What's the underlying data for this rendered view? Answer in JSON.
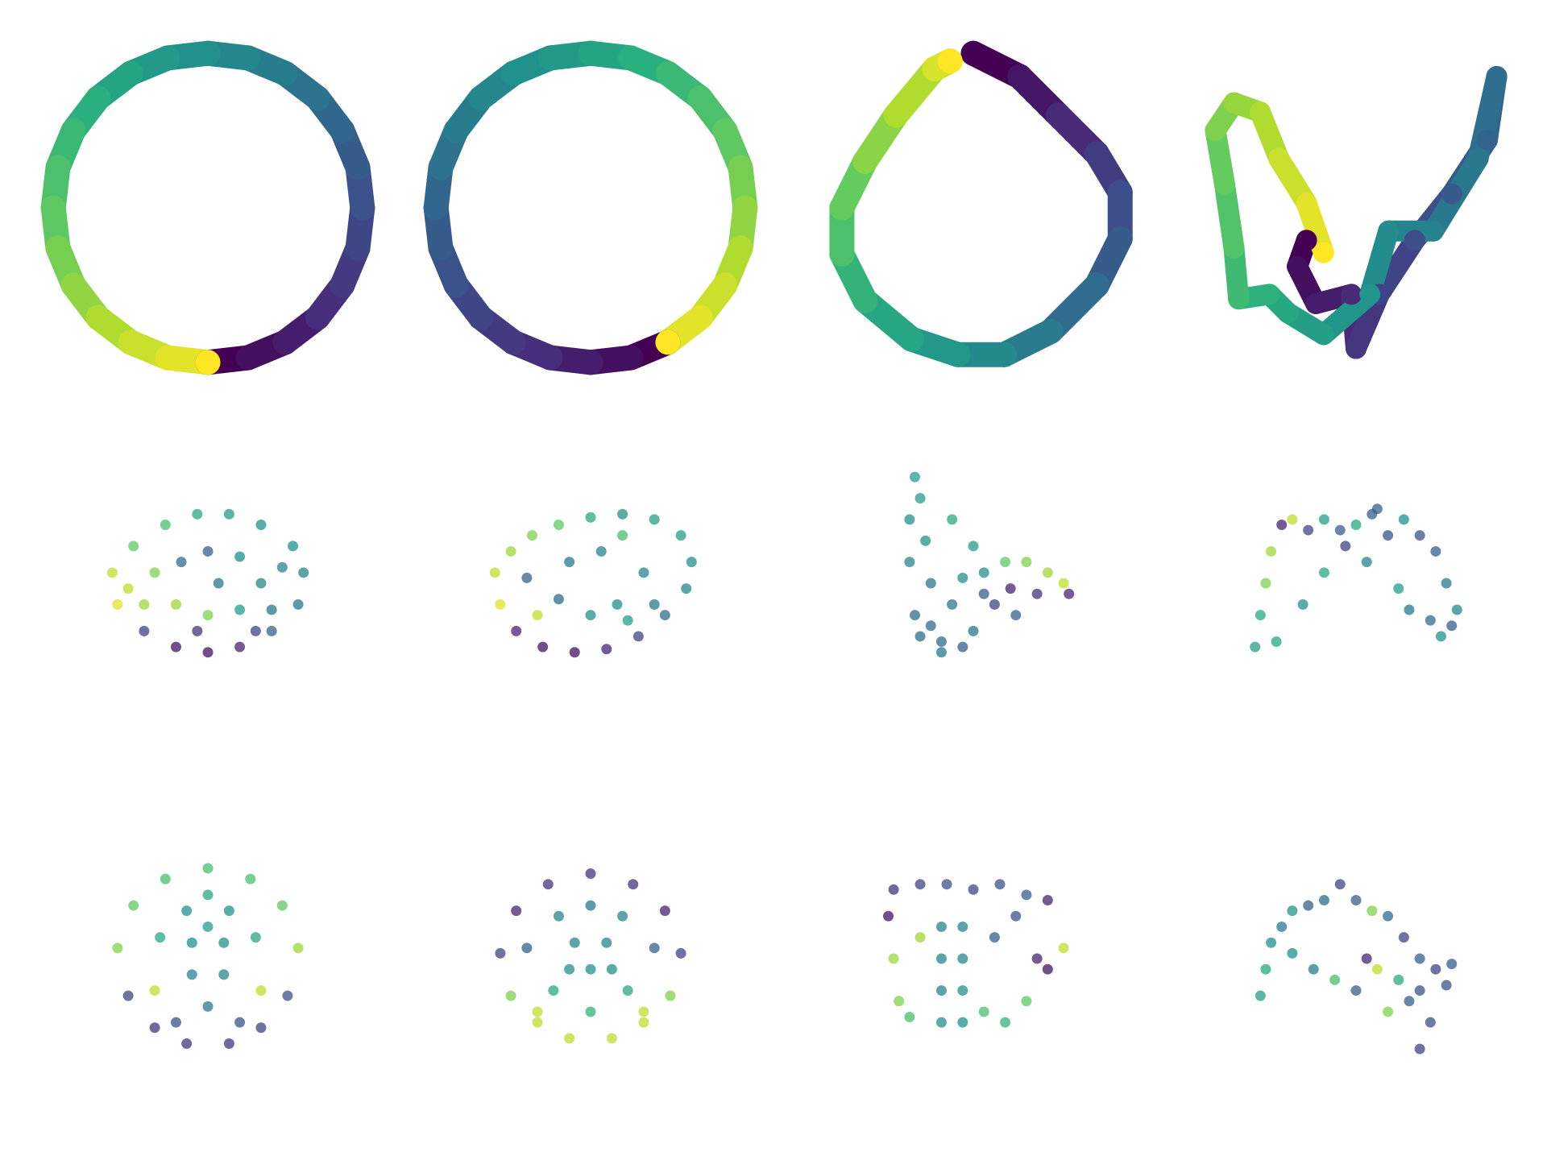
{
  "chart_data": [
    {
      "type": "line",
      "colormap": "viridis",
      "xlim": [
        -1.1,
        1.1
      ],
      "ylim": [
        -1.1,
        1.1
      ],
      "x": [
        0,
        0.26,
        0.5,
        0.71,
        0.87,
        0.97,
        1,
        0.97,
        0.87,
        0.71,
        0.5,
        0.26,
        0,
        -0.26,
        -0.5,
        -0.71,
        -0.87,
        -0.97,
        -1,
        -0.97,
        -0.87,
        -0.71,
        -0.5,
        -0.26,
        0
      ],
      "y": [
        -1,
        -0.97,
        -0.87,
        -0.71,
        -0.5,
        -0.26,
        0,
        0.26,
        0.5,
        0.71,
        0.87,
        0.97,
        1,
        0.97,
        0.87,
        0.71,
        0.5,
        0.26,
        0,
        -0.26,
        -0.5,
        -0.71,
        -0.87,
        -0.97,
        -1
      ],
      "c": [
        0,
        0.04,
        0.08,
        0.13,
        0.17,
        0.21,
        0.25,
        0.29,
        0.33,
        0.38,
        0.42,
        0.46,
        0.5,
        0.54,
        0.58,
        0.63,
        0.67,
        0.71,
        0.75,
        0.79,
        0.83,
        0.88,
        0.92,
        0.96,
        1
      ]
    },
    {
      "type": "line",
      "colormap": "viridis",
      "xlim": [
        -1.1,
        1.1
      ],
      "ylim": [
        -1.1,
        1.1
      ],
      "x": [
        0.5,
        0.26,
        0,
        -0.26,
        -0.5,
        -0.71,
        -0.87,
        -0.97,
        -1,
        -0.97,
        -0.87,
        -0.71,
        -0.5,
        -0.26,
        0,
        0.26,
        0.5,
        0.71,
        0.87,
        0.97,
        1,
        0.97,
        0.87,
        0.71,
        0.5
      ],
      "y": [
        -0.87,
        -0.97,
        -1,
        -0.97,
        -0.87,
        -0.71,
        -0.5,
        -0.26,
        0,
        0.26,
        0.5,
        0.71,
        0.87,
        0.97,
        1,
        0.97,
        0.87,
        0.71,
        0.5,
        0.26,
        0,
        -0.26,
        -0.5,
        -0.71,
        -0.87
      ],
      "c": [
        0,
        0.04,
        0.08,
        0.13,
        0.17,
        0.21,
        0.25,
        0.29,
        0.33,
        0.38,
        0.42,
        0.46,
        0.5,
        0.54,
        0.58,
        0.63,
        0.67,
        0.71,
        0.75,
        0.79,
        0.83,
        0.88,
        0.92,
        0.96,
        1
      ]
    },
    {
      "type": "line",
      "colormap": "viridis",
      "xlim": [
        -1.1,
        1.1
      ],
      "ylim": [
        -1.1,
        1.1
      ],
      "x": [
        0,
        0.3,
        0.55,
        0.8,
        0.95,
        0.95,
        0.8,
        0.5,
        0.2,
        -0.1,
        -0.4,
        -0.7,
        -0.85,
        -0.85,
        -0.7,
        -0.5,
        -0.25,
        -0.15
      ],
      "y": [
        1,
        0.85,
        0.6,
        0.35,
        0.1,
        -0.2,
        -0.5,
        -0.8,
        -0.95,
        -0.95,
        -0.85,
        -0.6,
        -0.3,
        0,
        0.3,
        0.6,
        0.9,
        0.95
      ],
      "c": [
        0,
        0.06,
        0.12,
        0.18,
        0.24,
        0.29,
        0.35,
        0.41,
        0.47,
        0.53,
        0.59,
        0.65,
        0.71,
        0.76,
        0.82,
        0.88,
        0.94,
        1
      ]
    },
    {
      "type": "line",
      "colormap": "viridis",
      "xlim": [
        -1.1,
        1.1
      ],
      "ylim": [
        -1.1,
        1.1
      ],
      "x": [
        -0.32,
        -0.38,
        -0.26,
        -0.03,
        0,
        0.15,
        0.38,
        0.62,
        0.85,
        0.91,
        0.79,
        0.5,
        0.21,
        0.09,
        -0.21,
        -0.44,
        -0.56,
        -0.76,
        -0.79,
        -0.85,
        -0.91,
        -0.79,
        -0.62,
        -0.5,
        -0.32,
        -0.21
      ],
      "y": [
        -0.21,
        -0.38,
        -0.62,
        -0.56,
        -0.91,
        -0.56,
        -0.21,
        0.09,
        0.44,
        0.85,
        0.32,
        -0.15,
        -0.15,
        -0.56,
        -0.82,
        -0.68,
        -0.56,
        -0.59,
        -0.26,
        0.15,
        0.5,
        0.68,
        0.62,
        0.32,
        0.03,
        -0.29
      ],
      "c": [
        0,
        0.04,
        0.08,
        0.12,
        0.16,
        0.2,
        0.24,
        0.28,
        0.32,
        0.36,
        0.4,
        0.44,
        0.48,
        0.52,
        0.56,
        0.6,
        0.64,
        0.68,
        0.72,
        0.76,
        0.8,
        0.84,
        0.88,
        0.92,
        0.96,
        1
      ]
    },
    {
      "type": "scatter",
      "colormap": "viridis",
      "xlim": [
        -1.6,
        1.6
      ],
      "ylim": [
        -1.6,
        1.6
      ],
      "x": [
        -0.9,
        -0.85,
        -0.6,
        -0.3,
        0,
        0.3,
        0.6,
        0.85,
        0.9,
        0.8,
        0.5,
        0.2,
        -0.1,
        -0.4,
        -0.7,
        -0.5,
        -0.3,
        0,
        0.3,
        0.5,
        0.3,
        0,
        -0.25,
        -0.6,
        0.6,
        -0.75,
        0.1,
        -0.1,
        0.45,
        0.7
      ],
      "y": [
        0.1,
        -0.2,
        -0.45,
        -0.6,
        -0.65,
        -0.6,
        -0.45,
        -0.2,
        0.1,
        0.35,
        0.55,
        0.65,
        0.65,
        0.55,
        0.35,
        0.1,
        -0.2,
        -0.3,
        -0.25,
        0,
        0.25,
        0.3,
        0.2,
        -0.2,
        -0.25,
        -0.05,
        0,
        -0.45,
        -0.45,
        0.15
      ],
      "c": [
        0.9,
        0.95,
        0.2,
        0.05,
        0.05,
        0.1,
        0.3,
        0.4,
        0.45,
        0.5,
        0.5,
        0.55,
        0.6,
        0.7,
        0.75,
        0.8,
        0.85,
        0.8,
        0.55,
        0.45,
        0.5,
        0.3,
        0.35,
        0.85,
        0.4,
        0.9,
        0.4,
        0.15,
        0.2,
        0.45
      ]
    },
    {
      "type": "scatter",
      "colormap": "viridis",
      "xlim": [
        -1.6,
        1.6
      ],
      "ylim": [
        -1.6,
        1.6
      ],
      "x": [
        -0.9,
        -0.85,
        -0.7,
        -0.45,
        -0.15,
        0.15,
        0.45,
        0.7,
        0.9,
        0.95,
        0.85,
        0.6,
        0.3,
        0,
        -0.3,
        -0.55,
        -0.75,
        -0.6,
        -0.3,
        0,
        0.25,
        0.35,
        0.3,
        0.5,
        -0.5,
        -0.2,
        0.1,
        0.6
      ],
      "y": [
        0.1,
        -0.2,
        -0.45,
        -0.6,
        -0.65,
        -0.62,
        -0.5,
        -0.3,
        -0.05,
        0.2,
        0.45,
        0.6,
        0.65,
        0.62,
        0.55,
        0.45,
        0.3,
        0.05,
        -0.15,
        -0.3,
        -0.2,
        -0.35,
        0.45,
        0.1,
        -0.3,
        0.2,
        0.3,
        -0.2
      ],
      "c": [
        0.9,
        0.95,
        0.1,
        0.05,
        0.05,
        0.1,
        0.2,
        0.35,
        0.45,
        0.5,
        0.55,
        0.55,
        0.5,
        0.6,
        0.75,
        0.8,
        0.85,
        0.3,
        0.35,
        0.5,
        0.5,
        0.55,
        0.7,
        0.45,
        0.9,
        0.4,
        0.45,
        0.4
      ]
    },
    {
      "type": "scatter",
      "colormap": "viridis",
      "xlim": [
        -1.6,
        1.6
      ],
      "ylim": [
        -1.6,
        1.6
      ],
      "x": [
        -0.55,
        -0.5,
        -0.6,
        -0.45,
        -0.6,
        -0.4,
        -0.55,
        -0.3,
        -0.1,
        0,
        -0.2,
        0.1,
        0.3,
        0.5,
        0.7,
        0.85,
        0.9,
        0.6,
        0.35,
        0.2,
        -0.4,
        -0.2,
        0,
        -0.1,
        0.1,
        -0.5,
        -0.3,
        0.4
      ],
      "y": [
        1,
        0.8,
        0.6,
        0.4,
        0.2,
        0,
        -0.3,
        -0.55,
        -0.6,
        -0.45,
        -0.2,
        0.1,
        0.2,
        0.2,
        0.1,
        0,
        -0.1,
        -0.1,
        -0.05,
        -0.2,
        -0.4,
        0.6,
        0.35,
        0.05,
        -0.1,
        -0.5,
        -0.65,
        -0.3
      ],
      "c": [
        0.55,
        0.55,
        0.5,
        0.5,
        0.45,
        0.4,
        0.35,
        0.35,
        0.3,
        0.4,
        0.4,
        0.5,
        0.75,
        0.8,
        0.85,
        0.9,
        0.1,
        0.15,
        0.1,
        0.2,
        0.35,
        0.6,
        0.55,
        0.5,
        0.3,
        0.35,
        0.4,
        0.3
      ]
    },
    {
      "type": "scatter",
      "colormap": "viridis",
      "xlim": [
        -1.6,
        1.6
      ],
      "ylim": [
        -1.6,
        1.6
      ],
      "x": [
        -0.95,
        -0.9,
        -0.85,
        -0.8,
        -0.7,
        -0.6,
        -0.45,
        -0.3,
        -0.15,
        0,
        0.15,
        0.3,
        0.45,
        0.6,
        0.75,
        0.85,
        0.95,
        0.9,
        0.7,
        0.5,
        -0.5,
        -0.3,
        0.1,
        0.4,
        0.8,
        -0.75,
        0.2,
        -0.1
      ],
      "y": [
        -0.6,
        -0.3,
        0,
        0.3,
        0.55,
        0.6,
        0.5,
        0.6,
        0.5,
        0.55,
        0.65,
        0.45,
        0.6,
        0.45,
        0.3,
        0,
        -0.25,
        -0.4,
        -0.35,
        -0.25,
        -0.2,
        0.1,
        0.2,
        -0.05,
        -0.5,
        -0.55,
        0.7,
        0.35
      ],
      "c": [
        0.55,
        0.6,
        0.8,
        0.85,
        0.1,
        0.9,
        0.2,
        0.55,
        0.3,
        0.6,
        0.3,
        0.25,
        0.5,
        0.25,
        0.3,
        0.4,
        0.45,
        0.3,
        0.35,
        0.4,
        0.5,
        0.6,
        0.45,
        0.55,
        0.5,
        0.6,
        0.3,
        0.2
      ]
    },
    {
      "type": "scatter",
      "colormap": "viridis",
      "xlim": [
        -1.6,
        1.6
      ],
      "ylim": [
        -1.6,
        1.6
      ],
      "x": [
        0,
        -0.4,
        -0.7,
        -0.85,
        -0.75,
        -0.5,
        -0.2,
        0.2,
        0.5,
        0.75,
        0.85,
        0.7,
        0.4,
        0,
        -0.2,
        0.2,
        -0.15,
        0.15,
        -0.15,
        0.15,
        0,
        -0.45,
        0.45,
        -0.5,
        0.5,
        -0.3,
        0.3,
        0
      ],
      "y": [
        0.85,
        0.75,
        0.5,
        0.1,
        -0.35,
        -0.65,
        -0.8,
        -0.8,
        -0.65,
        -0.35,
        0.1,
        0.5,
        0.75,
        0.6,
        0.45,
        0.45,
        0.15,
        0.15,
        -0.15,
        -0.15,
        -0.45,
        0.2,
        0.2,
        -0.3,
        -0.3,
        -0.6,
        -0.6,
        0.3
      ],
      "c": [
        0.7,
        0.7,
        0.75,
        0.8,
        0.2,
        0.15,
        0.15,
        0.15,
        0.2,
        0.25,
        0.85,
        0.75,
        0.7,
        0.6,
        0.5,
        0.5,
        0.5,
        0.5,
        0.45,
        0.45,
        0.4,
        0.6,
        0.6,
        0.9,
        0.9,
        0.25,
        0.25,
        0.55
      ]
    },
    {
      "type": "scatter",
      "colormap": "viridis",
      "xlim": [
        -1.6,
        1.6
      ],
      "ylim": [
        -1.6,
        1.6
      ],
      "x": [
        0,
        -0.4,
        -0.7,
        -0.85,
        -0.75,
        -0.5,
        -0.2,
        0.2,
        0.5,
        0.75,
        0.85,
        0.7,
        0.4,
        -0.3,
        0.3,
        -0.15,
        0.15,
        0,
        -0.6,
        0.6,
        -0.35,
        0.35,
        0,
        -0.5,
        0.5,
        0,
        -0.2,
        0.2
      ],
      "y": [
        0.8,
        0.7,
        0.45,
        0.05,
        -0.35,
        -0.6,
        -0.75,
        -0.75,
        -0.6,
        -0.35,
        0.05,
        0.45,
        0.7,
        0.4,
        0.4,
        0.15,
        0.15,
        -0.1,
        0.1,
        0.1,
        -0.3,
        -0.3,
        -0.5,
        -0.5,
        -0.5,
        0.5,
        -0.1,
        -0.1
      ],
      "c": [
        0.15,
        0.15,
        0.1,
        0.2,
        0.8,
        0.9,
        0.9,
        0.9,
        0.9,
        0.8,
        0.2,
        0.1,
        0.15,
        0.45,
        0.45,
        0.45,
        0.45,
        0.5,
        0.3,
        0.3,
        0.6,
        0.6,
        0.65,
        0.9,
        0.9,
        0.4,
        0.5,
        0.5
      ]
    },
    {
      "type": "scatter",
      "colormap": "viridis",
      "xlim": [
        -1.6,
        1.6
      ],
      "ylim": [
        -1.6,
        1.6
      ],
      "x": [
        -0.75,
        -0.5,
        -0.25,
        0,
        0.25,
        0.5,
        0.7,
        -0.8,
        -0.75,
        -0.7,
        -0.3,
        -0.3,
        -0.3,
        -0.3,
        -0.1,
        -0.1,
        -0.1,
        -0.1,
        0.1,
        0.3,
        0.5,
        0.7,
        0.85,
        0.6,
        0.2,
        -0.6,
        -0.5,
        0.4
      ],
      "y": [
        0.65,
        0.7,
        0.7,
        0.65,
        0.7,
        0.6,
        0.55,
        0.4,
        0,
        -0.4,
        0.3,
        0,
        -0.3,
        -0.6,
        0.3,
        0,
        -0.3,
        -0.6,
        -0.5,
        -0.6,
        -0.4,
        -0.1,
        0.1,
        0,
        0.2,
        -0.55,
        0.2,
        0.4
      ],
      "c": [
        0.15,
        0.2,
        0.25,
        0.2,
        0.25,
        0.3,
        0.1,
        0.05,
        0.85,
        0.8,
        0.45,
        0.45,
        0.45,
        0.5,
        0.45,
        0.45,
        0.5,
        0.5,
        0.7,
        0.65,
        0.75,
        0.05,
        0.9,
        0.1,
        0.3,
        0.7,
        0.85,
        0.25
      ]
    },
    {
      "type": "scatter",
      "colormap": "viridis",
      "xlim": [
        -1.6,
        1.6
      ],
      "ylim": [
        -1.6,
        1.6
      ],
      "x": [
        -0.9,
        -0.85,
        -0.8,
        -0.7,
        -0.6,
        -0.45,
        -0.3,
        -0.15,
        0,
        0.15,
        0.3,
        0.45,
        0.6,
        0.75,
        0.9,
        0.85,
        0.6,
        0.4,
        0.2,
        0,
        -0.2,
        -0.4,
        0.1,
        0.3,
        0.5,
        0.7,
        0.6,
        -0.6
      ],
      "y": [
        -0.35,
        -0.1,
        0.15,
        0.3,
        0.45,
        0.5,
        0.55,
        0.7,
        0.55,
        0.45,
        0.4,
        0.2,
        0,
        -0.1,
        -0.05,
        -0.25,
        -0.3,
        -0.2,
        -0.1,
        -0.3,
        -0.2,
        -0.1,
        0,
        -0.5,
        -0.4,
        -0.6,
        -0.85,
        0.05
      ],
      "c": [
        0.55,
        0.6,
        0.5,
        0.4,
        0.5,
        0.3,
        0.35,
        0.2,
        0.3,
        0.8,
        0.35,
        0.2,
        0.3,
        0.2,
        0.3,
        0.25,
        0.25,
        0.6,
        0.9,
        0.3,
        0.7,
        0.4,
        0.1,
        0.8,
        0.3,
        0.25,
        0.2,
        0.5
      ]
    }
  ]
}
